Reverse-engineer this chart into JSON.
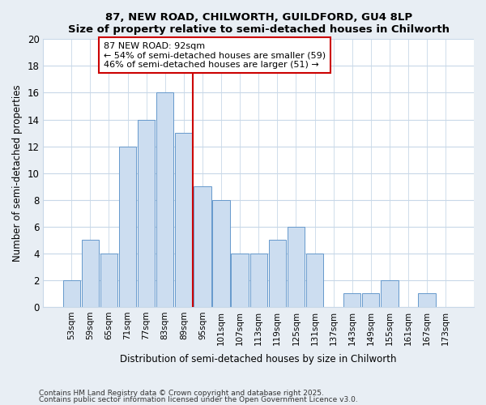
{
  "title": "87, NEW ROAD, CHILWORTH, GUILDFORD, GU4 8LP",
  "subtitle": "Size of property relative to semi-detached houses in Chilworth",
  "xlabel": "Distribution of semi-detached houses by size in Chilworth",
  "ylabel": "Number of semi-detached properties",
  "categories": [
    "53sqm",
    "59sqm",
    "65sqm",
    "71sqm",
    "77sqm",
    "83sqm",
    "89sqm",
    "95sqm",
    "101sqm",
    "107sqm",
    "113sqm",
    "119sqm",
    "125sqm",
    "131sqm",
    "137sqm",
    "143sqm",
    "149sqm",
    "155sqm",
    "161sqm",
    "167sqm",
    "173sqm"
  ],
  "values": [
    2,
    5,
    4,
    12,
    14,
    16,
    13,
    9,
    8,
    4,
    4,
    5,
    6,
    4,
    0,
    1,
    1,
    2,
    0,
    1,
    0
  ],
  "bar_color": "#ccddf0",
  "bar_edge_color": "#6699cc",
  "vline_x": 6.5,
  "vline_color": "#cc0000",
  "annotation_title": "87 NEW ROAD: 92sqm",
  "annotation_line1": "← 54% of semi-detached houses are smaller (59)",
  "annotation_line2": "46% of semi-detached houses are larger (51) →",
  "annotation_box_color": "#cc0000",
  "ylim": [
    0,
    20
  ],
  "yticks": [
    0,
    2,
    4,
    6,
    8,
    10,
    12,
    14,
    16,
    18,
    20
  ],
  "footnote1": "Contains HM Land Registry data © Crown copyright and database right 2025.",
  "footnote2": "Contains public sector information licensed under the Open Government Licence v3.0.",
  "bg_color": "#e8eef4",
  "plot_bg_color": "#ffffff",
  "grid_color": "#c8d8e8"
}
